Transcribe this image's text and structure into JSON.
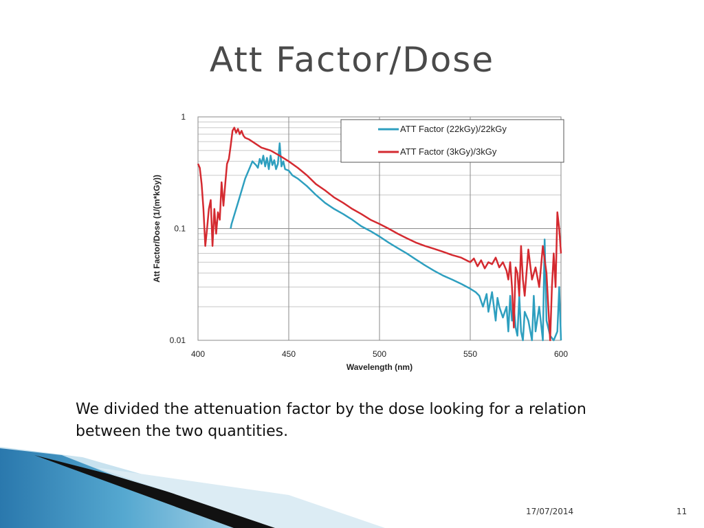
{
  "slide": {
    "title": "Att Factor/Dose",
    "body_text": "We divided the attenuation factor by the dose looking for a relation between the two quantities.",
    "footer_date": "17/07/2014",
    "page_number": "11"
  },
  "chart_data": {
    "type": "line",
    "title": "",
    "xlabel": "Wavelength (nm)",
    "ylabel": "Att Factor/Dose (1/(m*kGy))",
    "xlim": [
      400,
      600
    ],
    "ylim": [
      0.01,
      1
    ],
    "yscale": "log",
    "x_ticks": [
      400,
      450,
      500,
      550,
      600
    ],
    "x_tick_labels": [
      "400",
      "450",
      "500",
      "550",
      "600"
    ],
    "y_ticks": [
      0.01,
      0.1,
      1
    ],
    "y_tick_labels": [
      "0.01",
      "0.1",
      "1"
    ],
    "grid": true,
    "legend_position": "top-right",
    "series": [
      {
        "name": "ATT Factor (22kGy)/22kGy",
        "color": "#2e9fbf",
        "x": [
          418,
          418.5,
          422,
          426,
          430,
          432,
          433,
          434,
          435,
          436,
          437,
          438,
          439,
          440,
          441,
          442,
          443,
          444,
          445,
          446,
          447,
          448,
          450,
          452,
          455,
          460,
          465,
          470,
          475,
          480,
          485,
          490,
          495,
          500,
          505,
          510,
          515,
          520,
          525,
          530,
          535,
          540,
          545,
          550,
          553,
          555,
          557,
          559,
          560,
          562,
          564,
          565,
          566,
          568,
          570,
          571,
          572,
          573,
          574,
          575,
          576,
          577,
          578,
          579,
          580,
          582,
          584,
          585,
          586,
          588,
          590,
          591,
          592,
          594,
          596,
          598,
          599,
          600
        ],
        "values": [
          0.1,
          0.11,
          0.17,
          0.28,
          0.4,
          0.37,
          0.35,
          0.42,
          0.38,
          0.45,
          0.36,
          0.43,
          0.34,
          0.45,
          0.37,
          0.41,
          0.34,
          0.38,
          0.58,
          0.36,
          0.4,
          0.34,
          0.33,
          0.3,
          0.28,
          0.24,
          0.2,
          0.17,
          0.15,
          0.135,
          0.12,
          0.105,
          0.095,
          0.085,
          0.075,
          0.067,
          0.06,
          0.053,
          0.047,
          0.042,
          0.038,
          0.035,
          0.032,
          0.029,
          0.027,
          0.025,
          0.02,
          0.026,
          0.018,
          0.027,
          0.015,
          0.024,
          0.02,
          0.016,
          0.02,
          0.012,
          0.025,
          0.015,
          0.02,
          0.013,
          0.011,
          0.025,
          0.012,
          0.01,
          0.018,
          0.015,
          0.01,
          0.025,
          0.012,
          0.02,
          0.01,
          0.08,
          0.015,
          0.011,
          0.01,
          0.012,
          0.03,
          0.01
        ]
      },
      {
        "name": "ATT Factor (3kGy)/3kGy",
        "color": "#d42a30",
        "x": [
          400,
          401,
          402,
          403,
          404,
          405,
          406,
          407,
          408,
          409,
          410,
          411,
          412,
          413,
          414,
          415,
          416,
          417,
          418,
          419,
          420,
          421,
          422,
          423,
          424,
          425,
          426,
          428,
          430,
          435,
          440,
          445,
          450,
          455,
          460,
          465,
          470,
          475,
          480,
          485,
          490,
          495,
          500,
          505,
          510,
          515,
          520,
          525,
          530,
          535,
          540,
          545,
          550,
          552,
          554,
          556,
          558,
          560,
          562,
          564,
          566,
          568,
          570,
          571,
          572,
          573,
          574,
          575,
          576,
          577,
          578,
          579,
          580,
          582,
          584,
          586,
          588,
          590,
          592,
          593,
          594,
          595,
          596,
          597,
          598,
          599,
          600
        ],
        "values": [
          0.38,
          0.35,
          0.25,
          0.15,
          0.07,
          0.1,
          0.15,
          0.18,
          0.07,
          0.15,
          0.09,
          0.14,
          0.12,
          0.26,
          0.16,
          0.25,
          0.38,
          0.42,
          0.55,
          0.75,
          0.8,
          0.72,
          0.78,
          0.7,
          0.75,
          0.68,
          0.65,
          0.63,
          0.6,
          0.53,
          0.5,
          0.45,
          0.4,
          0.35,
          0.3,
          0.25,
          0.22,
          0.19,
          0.17,
          0.15,
          0.135,
          0.12,
          0.11,
          0.1,
          0.09,
          0.082,
          0.075,
          0.07,
          0.066,
          0.062,
          0.058,
          0.055,
          0.05,
          0.054,
          0.046,
          0.052,
          0.044,
          0.05,
          0.048,
          0.055,
          0.045,
          0.05,
          0.042,
          0.035,
          0.05,
          0.03,
          0.013,
          0.045,
          0.04,
          0.025,
          0.07,
          0.035,
          0.025,
          0.065,
          0.035,
          0.045,
          0.03,
          0.07,
          0.04,
          0.02,
          0.01,
          0.03,
          0.06,
          0.03,
          0.14,
          0.1,
          0.06
        ]
      }
    ]
  }
}
